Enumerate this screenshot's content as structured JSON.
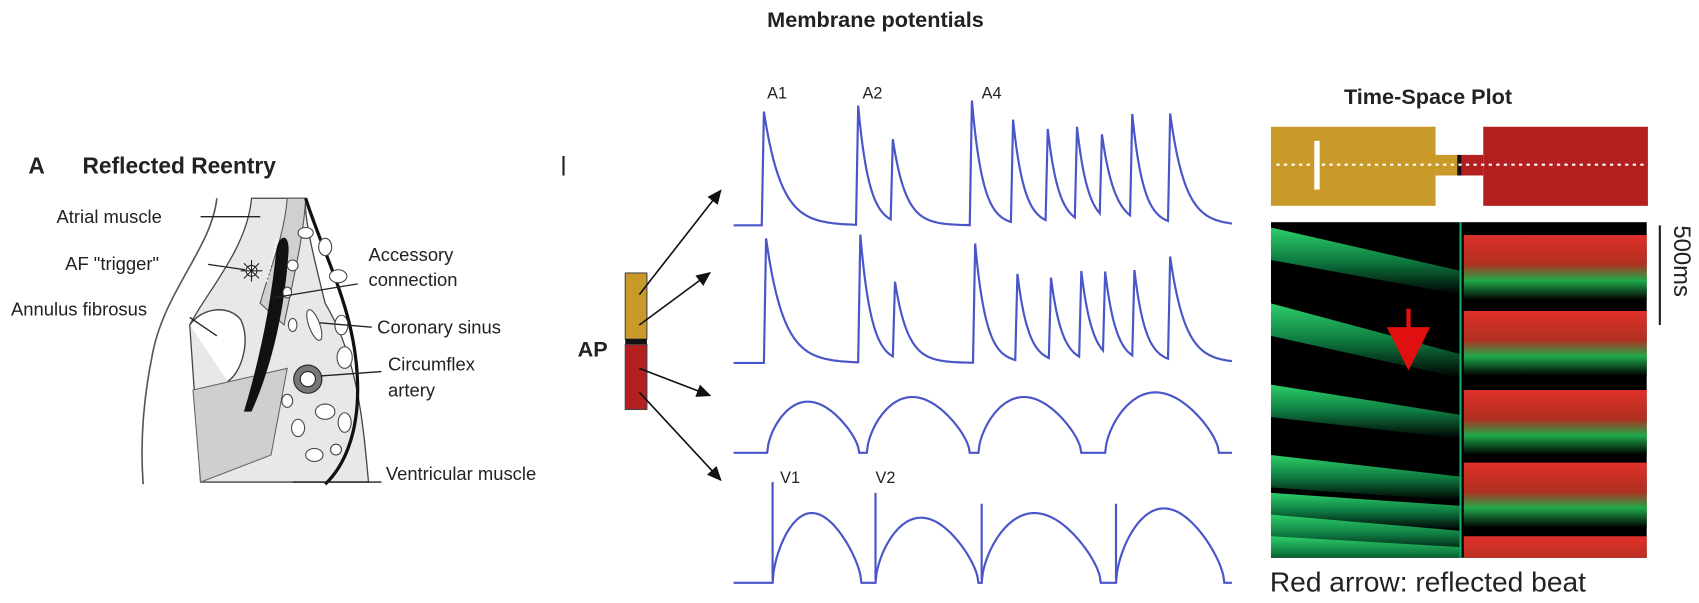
{
  "title": "Membrane potentials",
  "anatomy": {
    "letter": "A",
    "title": "Reflected Reentry",
    "atrial_muscle": "Atrial muscle",
    "af_trigger": "AF \"trigger\"",
    "annulus_fibrosus": "Annulus fibrosus",
    "accessory_connection": [
      "Accessory",
      "connection"
    ],
    "coronary_sinus": "Coronary sinus",
    "circumflex_artery": [
      "Circumflex",
      "artery"
    ],
    "ventricular_muscle": "Ventricular muscle"
  },
  "traces": {
    "label": "AP",
    "markers": [
      "A1",
      "A2",
      "A4",
      "V1",
      "V2"
    ]
  },
  "time_space": {
    "title": "Time-Space Plot",
    "scale": "500ms",
    "caption": "Red arrow: reflected beat"
  }
}
